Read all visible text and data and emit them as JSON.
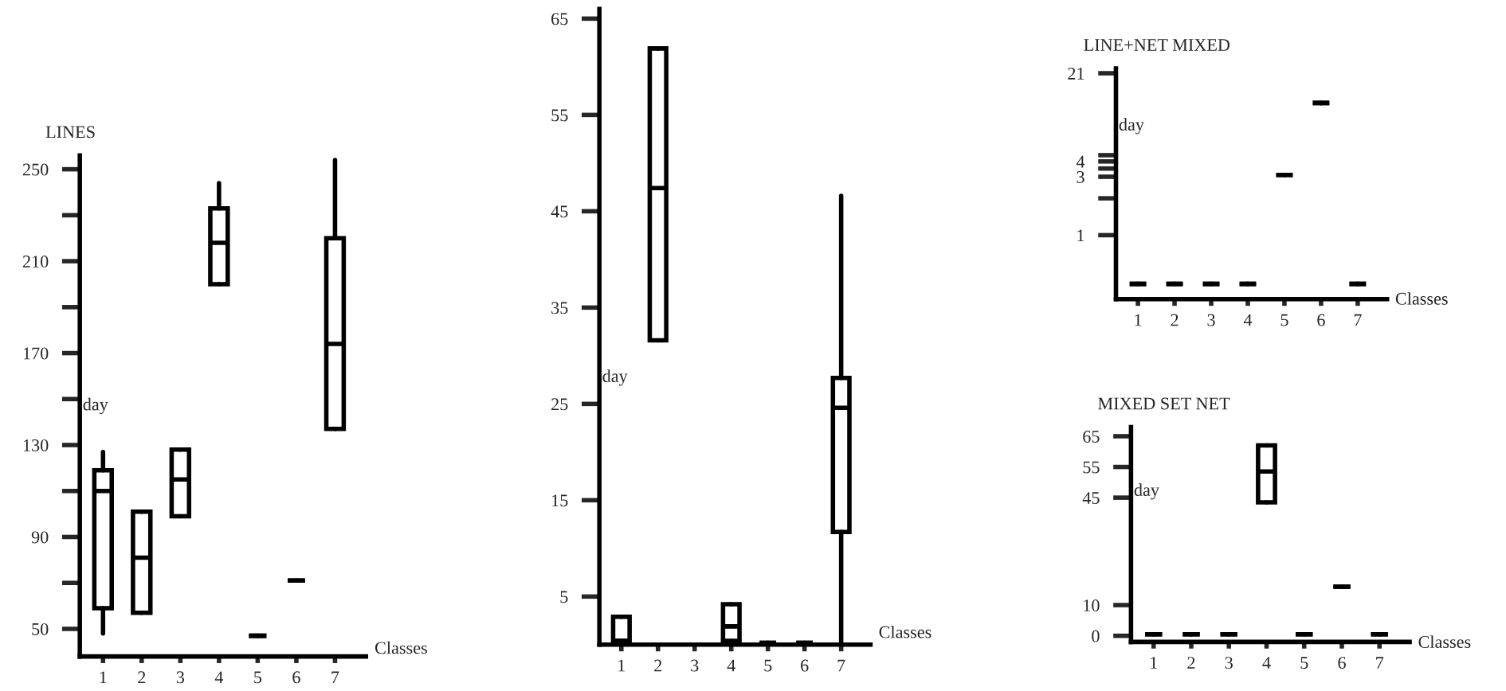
{
  "chart_data": [
    {
      "type": "box",
      "title": "LINES",
      "xlabel": "Classes",
      "ylabel": "day",
      "categories": [
        "1",
        "2",
        "3",
        "4",
        "5",
        "6",
        "7"
      ],
      "boxes": [
        {
          "low": 48,
          "q1": 59,
          "median": 110,
          "q3": 119,
          "high": 127
        },
        {
          "low": 57,
          "q1": 57,
          "median": 81,
          "q3": 101,
          "high": 101
        },
        {
          "low": 99,
          "q1": 99,
          "median": 115,
          "q3": 128,
          "high": 128
        },
        {
          "low": 200,
          "q1": 200,
          "median": 218,
          "q3": 233,
          "high": 244
        },
        {
          "low": 47,
          "q1": 47,
          "median": 47,
          "q3": 47,
          "high": 47
        },
        {
          "low": 71,
          "q1": 71,
          "median": 71,
          "q3": 71,
          "high": 71
        },
        {
          "low": 137,
          "q1": 137,
          "median": 174,
          "q3": 220,
          "high": 254
        }
      ],
      "ylim": [
        38,
        256
      ],
      "yticks": [
        50,
        {
          "value": 70,
          "label": null
        },
        90,
        {
          "value": 110,
          "label": null
        },
        130,
        {
          "value": 150,
          "label": null
        },
        170,
        {
          "value": 190,
          "label": null
        },
        210,
        {
          "value": 230,
          "label": null
        },
        250
      ]
    },
    {
      "type": "box",
      "xlabel": "Classes",
      "ylabel": "day",
      "categories": [
        "1",
        "2",
        "3",
        "4",
        "5",
        "6",
        "7"
      ],
      "boxes": [
        {
          "low": 0.4,
          "q1": 0.4,
          "median": 0.4,
          "q3": 2.9,
          "high": 2.9
        },
        {
          "low": 31.6,
          "q1": 31.6,
          "median": 47.4,
          "q3": 61.9,
          "high": 61.9
        },
        null,
        {
          "low": 0.4,
          "q1": 0.4,
          "median": 1.9,
          "q3": 4.2,
          "high": 4.2
        },
        {
          "low": 0.2,
          "q1": 0.2,
          "median": 0.2,
          "q3": 0.2,
          "high": 0.2
        },
        {
          "low": 0.2,
          "q1": 0.2,
          "median": 0.2,
          "q3": 0.2,
          "high": 0.2
        },
        {
          "low": 0,
          "q1": 11.7,
          "median": 24.6,
          "q3": 27.7,
          "high": 46.6
        }
      ],
      "ylim": [
        0,
        66
      ],
      "yticks": [
        5,
        15,
        25,
        35,
        45,
        55,
        65
      ]
    },
    {
      "type": "box",
      "title": "LINE+NET MIXED",
      "xlabel": "Classes",
      "ylabel": "day",
      "categories": [
        "1",
        "2",
        "3",
        "4",
        "5",
        "6",
        "7"
      ],
      "boxes": [
        {
          "low": 0.4,
          "q1": 0.4,
          "median": 0.4,
          "q3": 0.4,
          "high": 0.4
        },
        {
          "low": 0.4,
          "q1": 0.4,
          "median": 0.4,
          "q3": 0.4,
          "high": 0.4
        },
        {
          "low": 0.4,
          "q1": 0.4,
          "median": 0.4,
          "q3": 0.4,
          "high": 0.4
        },
        {
          "low": 0.4,
          "q1": 0.4,
          "median": 0.4,
          "q3": 0.4,
          "high": 0.4
        },
        {
          "low": 3.1,
          "q1": 3.1,
          "median": 3.1,
          "q3": 3.1,
          "high": 3.1
        },
        {
          "low": 12,
          "q1": 12,
          "median": 12,
          "q3": 12,
          "high": 12
        },
        {
          "low": 0.4,
          "q1": 0.4,
          "median": 0.4,
          "q3": 0.4,
          "high": 0.4
        }
      ],
      "ylim": [
        0.3,
        23
      ],
      "log": "y",
      "yticks": [
        1,
        {
          "value": 2,
          "label": null
        },
        3,
        {
          "value": 3.5,
          "label": null
        },
        4,
        {
          "value": 4.5,
          "label": null
        },
        21
      ]
    },
    {
      "type": "box",
      "title": "MIXED SET NET",
      "xlabel": "Classes",
      "ylabel": "day",
      "categories": [
        "1",
        "2",
        "3",
        "4",
        "5",
        "6",
        "7"
      ],
      "boxes": [
        {
          "low": 0.5,
          "q1": 0.5,
          "median": 0.5,
          "q3": 0.5,
          "high": 0.5
        },
        {
          "low": 0.5,
          "q1": 0.5,
          "median": 0.5,
          "q3": 0.5,
          "high": 0.5
        },
        {
          "low": 0.5,
          "q1": 0.5,
          "median": 0.5,
          "q3": 0.5,
          "high": 0.5
        },
        {
          "low": 43.5,
          "q1": 43.5,
          "median": 53.5,
          "q3": 62,
          "high": 62
        },
        {
          "low": 0.5,
          "q1": 0.5,
          "median": 0.5,
          "q3": 0.5,
          "high": 0.5
        },
        {
          "low": 16,
          "q1": 16,
          "median": 16,
          "q3": 16,
          "high": 16
        },
        {
          "low": 0.5,
          "q1": 0.5,
          "median": 0.5,
          "q3": 0.5,
          "high": 0.5
        }
      ],
      "ylim": [
        -2,
        68
      ],
      "yticks": [
        0,
        10,
        45,
        55,
        65
      ]
    }
  ]
}
